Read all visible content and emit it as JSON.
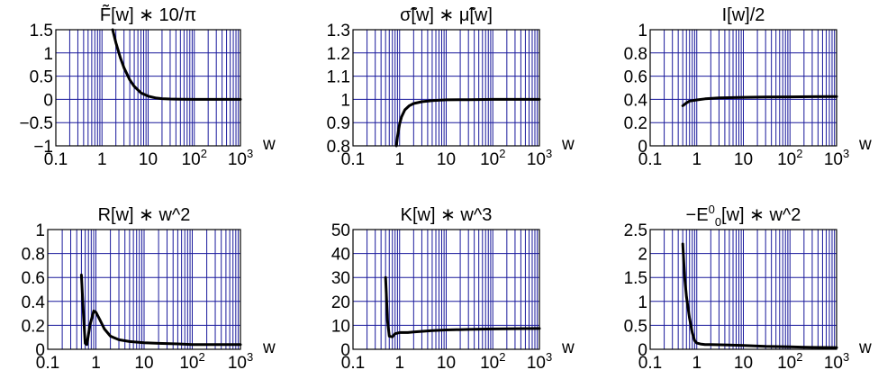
{
  "chart_data": [
    {
      "type": "line",
      "title": "F̃[w] ∗ 10/π",
      "xlabel": "w",
      "xscale": "log",
      "xlim": [
        0.1,
        1000
      ],
      "ylim": [
        -1,
        1.5
      ],
      "grid": true,
      "xticks": [
        "0.1",
        "1",
        "10",
        "10^2",
        "10^3"
      ],
      "yticks": [
        "1.5",
        "1",
        "0.5",
        "0",
        "−0.5",
        "−1"
      ],
      "series": [
        {
          "x": [
            1.7,
            2,
            2.5,
            3,
            4,
            5,
            7,
            10,
            15,
            20,
            30,
            50,
            100,
            200,
            500,
            1000
          ],
          "y": [
            1.5,
            1.22,
            0.9,
            0.68,
            0.42,
            0.28,
            0.14,
            0.07,
            0.03,
            0.015,
            0.007,
            0.003,
            0.0,
            0.0,
            0.0,
            0.0
          ]
        }
      ]
    },
    {
      "type": "line",
      "title": "σ̃[w] ∗ μ̃[w]",
      "xlabel": "w",
      "xscale": "log",
      "xlim": [
        0.1,
        1000
      ],
      "ylim": [
        0.8,
        1.3
      ],
      "grid": true,
      "xticks": [
        "0.1",
        "1",
        "10",
        "10^2",
        "10^3"
      ],
      "yticks": [
        "1.3",
        "1.2",
        "1.1",
        "1",
        "0.9",
        "0.8"
      ],
      "series": [
        {
          "x": [
            0.85,
            0.9,
            1,
            1.1,
            1.3,
            1.6,
            2,
            3,
            5,
            10,
            30,
            100,
            300,
            1000
          ],
          "y": [
            0.8,
            0.84,
            0.895,
            0.925,
            0.955,
            0.972,
            0.982,
            0.99,
            0.995,
            0.998,
            0.999,
            1.0,
            1.0,
            1.0
          ]
        }
      ]
    },
    {
      "type": "line",
      "title": "I[w]/2",
      "xlabel": "w",
      "xscale": "log",
      "xlim": [
        0.1,
        1000
      ],
      "ylim": [
        0,
        1
      ],
      "grid": true,
      "xticks": [
        "0.1",
        "1",
        "10",
        "10^2",
        "10^3"
      ],
      "yticks": [
        "1",
        "0.8",
        "0.6",
        "0.4",
        "0.2",
        "0"
      ],
      "series": [
        {
          "x": [
            0.5,
            0.6,
            0.7,
            1,
            1.5,
            3,
            10,
            30,
            100,
            300,
            1000
          ],
          "y": [
            0.345,
            0.37,
            0.385,
            0.395,
            0.405,
            0.413,
            0.418,
            0.42,
            0.422,
            0.423,
            0.424
          ]
        }
      ]
    },
    {
      "type": "line",
      "title": "R[w] ∗ w^2",
      "xlabel": "w",
      "xscale": "log",
      "xlim": [
        0.1,
        1000
      ],
      "ylim": [
        0,
        1
      ],
      "grid": true,
      "xticks": [
        "0.1",
        "1",
        "10",
        "10^2",
        "10^3"
      ],
      "yticks": [
        "1",
        "0.8",
        "0.6",
        "0.4",
        "0.2",
        "0"
      ],
      "series": [
        {
          "x": [
            0.5,
            0.55,
            0.6,
            0.65,
            0.75,
            0.9,
            1,
            1.2,
            1.5,
            2,
            3,
            5,
            10,
            20,
            50,
            100,
            300,
            1000
          ],
          "y": [
            0.62,
            0.3,
            0.05,
            0.04,
            0.2,
            0.32,
            0.31,
            0.25,
            0.17,
            0.11,
            0.08,
            0.065,
            0.055,
            0.05,
            0.045,
            0.04,
            0.04,
            0.04
          ]
        }
      ]
    },
    {
      "type": "line",
      "title": "K[w] ∗ w^3",
      "xlabel": "w",
      "xscale": "log",
      "xlim": [
        0.1,
        1000
      ],
      "ylim": [
        0,
        50
      ],
      "grid": true,
      "xticks": [
        "0.1",
        "1",
        "10",
        "10^2",
        "10^3"
      ],
      "yticks": [
        "50",
        "40",
        "30",
        "20",
        "10",
        "0"
      ],
      "series": [
        {
          "x": [
            0.5,
            0.55,
            0.6,
            0.7,
            0.8,
            1,
            1.5,
            2,
            5,
            10,
            30,
            100,
            300,
            1000
          ],
          "y": [
            30,
            12,
            5.5,
            5.2,
            6.5,
            7,
            7,
            7.2,
            7.8,
            8.1,
            8.3,
            8.5,
            8.6,
            8.7
          ]
        }
      ]
    },
    {
      "type": "line",
      "title": "−E0_0[w] ∗ w^2",
      "xlabel": "w",
      "xscale": "log",
      "xlim": [
        0.1,
        1000
      ],
      "ylim": [
        0,
        2.5
      ],
      "grid": true,
      "xticks": [
        "0.1",
        "1",
        "10",
        "10^2",
        "10^3"
      ],
      "yticks": [
        "2.5",
        "2",
        "1.5",
        "1",
        "0.5",
        "0"
      ],
      "series": [
        {
          "x": [
            0.5,
            0.55,
            0.6,
            0.7,
            0.8,
            0.9,
            1,
            1.2,
            1.5,
            2,
            5,
            10,
            30,
            100,
            300,
            1000
          ],
          "y": [
            2.2,
            1.5,
            1.1,
            0.65,
            0.35,
            0.18,
            0.13,
            0.11,
            0.1,
            0.1,
            0.09,
            0.08,
            0.06,
            0.05,
            0.04,
            0.035
          ]
        }
      ]
    }
  ]
}
